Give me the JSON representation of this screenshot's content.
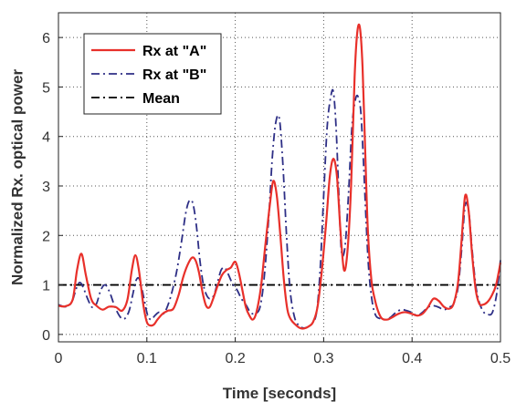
{
  "chart_data": {
    "type": "line",
    "title": "",
    "xlabel": "Time [seconds]",
    "ylabel": "Normalized Rx. optical power",
    "xlim": [
      0,
      0.5
    ],
    "ylim": [
      -0.15,
      6.5
    ],
    "x_ticks": [
      0,
      0.1,
      0.2,
      0.3,
      0.4,
      0.5
    ],
    "x_tick_labels": [
      "0",
      "0.1",
      "0.2",
      "0.3",
      "0.4",
      "0.5"
    ],
    "y_ticks": [
      0,
      1,
      2,
      3,
      4,
      5,
      6
    ],
    "y_tick_labels": [
      "0",
      "1",
      "2",
      "3",
      "4",
      "5",
      "6"
    ],
    "grid": true,
    "legend_position": "top-left",
    "series": [
      {
        "name": "Rx at \"A\"",
        "color": "#e8302a",
        "style": "solid",
        "x": [
          0,
          0.008,
          0.016,
          0.021,
          0.026,
          0.031,
          0.037,
          0.043,
          0.05,
          0.057,
          0.065,
          0.072,
          0.078,
          0.083,
          0.087,
          0.091,
          0.096,
          0.1,
          0.104,
          0.108,
          0.112,
          0.118,
          0.124,
          0.13,
          0.136,
          0.141,
          0.146,
          0.151,
          0.155,
          0.159,
          0.163,
          0.167,
          0.171,
          0.175,
          0.18,
          0.185,
          0.19,
          0.195,
          0.2,
          0.204,
          0.208,
          0.212,
          0.216,
          0.22,
          0.224,
          0.229,
          0.234,
          0.239,
          0.243,
          0.247,
          0.251,
          0.255,
          0.259,
          0.263,
          0.268,
          0.273,
          0.278,
          0.283,
          0.288,
          0.293,
          0.298,
          0.303,
          0.307,
          0.311,
          0.315,
          0.319,
          0.323,
          0.327,
          0.331,
          0.335,
          0.338,
          0.341,
          0.344,
          0.347,
          0.35,
          0.354,
          0.358,
          0.362,
          0.366,
          0.372,
          0.378,
          0.385,
          0.392,
          0.399,
          0.406,
          0.412,
          0.418,
          0.424,
          0.43,
          0.436,
          0.442,
          0.447,
          0.452,
          0.456,
          0.46,
          0.464,
          0.468,
          0.472,
          0.476,
          0.48,
          0.485,
          0.49,
          0.495,
          0.5
        ],
        "values": [
          0.58,
          0.57,
          0.7,
          1.3,
          1.63,
          1.2,
          0.72,
          0.58,
          0.5,
          0.56,
          0.55,
          0.48,
          0.7,
          1.3,
          1.6,
          1.3,
          0.6,
          0.25,
          0.18,
          0.2,
          0.3,
          0.42,
          0.48,
          0.52,
          0.8,
          1.15,
          1.4,
          1.55,
          1.5,
          1.25,
          0.85,
          0.58,
          0.55,
          0.72,
          0.98,
          1.2,
          1.3,
          1.35,
          1.47,
          1.25,
          0.9,
          0.55,
          0.38,
          0.3,
          0.45,
          0.95,
          1.8,
          2.6,
          3.1,
          2.8,
          2.0,
          1.1,
          0.5,
          0.3,
          0.2,
          0.13,
          0.12,
          0.16,
          0.25,
          0.55,
          1.3,
          2.3,
          3.2,
          3.55,
          3.2,
          2.1,
          1.3,
          1.7,
          3.0,
          5.2,
          6.1,
          6.2,
          5.4,
          3.7,
          2.1,
          1.1,
          0.7,
          0.45,
          0.32,
          0.3,
          0.35,
          0.42,
          0.45,
          0.42,
          0.38,
          0.42,
          0.55,
          0.72,
          0.68,
          0.56,
          0.52,
          0.62,
          1.05,
          1.9,
          2.8,
          2.5,
          1.6,
          0.9,
          0.62,
          0.6,
          0.65,
          0.78,
          1.0,
          1.45
        ]
      },
      {
        "name": "Rx at \"B\"",
        "color": "#2e2f86",
        "style": "dashdot",
        "x": [
          0,
          0.008,
          0.015,
          0.02,
          0.024,
          0.028,
          0.033,
          0.038,
          0.043,
          0.048,
          0.053,
          0.058,
          0.064,
          0.07,
          0.075,
          0.08,
          0.084,
          0.088,
          0.092,
          0.097,
          0.101,
          0.105,
          0.109,
          0.114,
          0.119,
          0.124,
          0.129,
          0.134,
          0.139,
          0.144,
          0.148,
          0.152,
          0.156,
          0.16,
          0.164,
          0.168,
          0.172,
          0.176,
          0.18,
          0.184,
          0.188,
          0.192,
          0.197,
          0.202,
          0.207,
          0.212,
          0.217,
          0.222,
          0.228,
          0.233,
          0.238,
          0.242,
          0.246,
          0.25,
          0.254,
          0.258,
          0.262,
          0.267,
          0.272,
          0.277,
          0.282,
          0.287,
          0.292,
          0.296,
          0.3,
          0.304,
          0.308,
          0.311,
          0.314,
          0.317,
          0.32,
          0.324,
          0.328,
          0.332,
          0.336,
          0.339,
          0.342,
          0.345,
          0.348,
          0.351,
          0.355,
          0.359,
          0.364,
          0.37,
          0.376,
          0.382,
          0.388,
          0.394,
          0.4,
          0.406,
          0.412,
          0.418,
          0.424,
          0.43,
          0.436,
          0.442,
          0.447,
          0.452,
          0.456,
          0.46,
          0.464,
          0.468,
          0.472,
          0.476,
          0.481,
          0.486,
          0.491,
          0.496,
          0.5
        ],
        "values": [
          0.6,
          0.56,
          0.65,
          0.92,
          1.05,
          0.95,
          0.72,
          0.55,
          0.62,
          0.9,
          1.0,
          0.85,
          0.55,
          0.35,
          0.32,
          0.48,
          0.8,
          1.1,
          1.1,
          0.7,
          0.38,
          0.3,
          0.38,
          0.45,
          0.42,
          0.6,
          0.9,
          1.3,
          1.85,
          2.45,
          2.7,
          2.65,
          2.2,
          1.5,
          1.0,
          0.78,
          0.72,
          0.8,
          1.05,
          1.3,
          1.35,
          1.22,
          1.02,
          0.9,
          0.72,
          0.6,
          0.45,
          0.42,
          0.55,
          1.2,
          2.4,
          3.6,
          4.3,
          4.35,
          3.4,
          2.0,
          0.9,
          0.35,
          0.18,
          0.13,
          0.15,
          0.22,
          0.45,
          1.3,
          2.8,
          4.2,
          4.8,
          4.9,
          4.2,
          2.9,
          1.7,
          1.75,
          2.8,
          4.2,
          4.75,
          4.8,
          4.5,
          3.5,
          2.3,
          1.3,
          0.65,
          0.38,
          0.32,
          0.3,
          0.35,
          0.45,
          0.5,
          0.48,
          0.44,
          0.38,
          0.45,
          0.55,
          0.58,
          0.55,
          0.5,
          0.55,
          0.62,
          0.95,
          1.7,
          2.6,
          2.5,
          1.7,
          1.0,
          0.65,
          0.45,
          0.4,
          0.45,
          0.85,
          1.5
        ]
      },
      {
        "name": "Mean",
        "color": "#000000",
        "style": "dashdot",
        "x": [
          0,
          0.5
        ],
        "values": [
          1,
          1
        ]
      }
    ]
  }
}
